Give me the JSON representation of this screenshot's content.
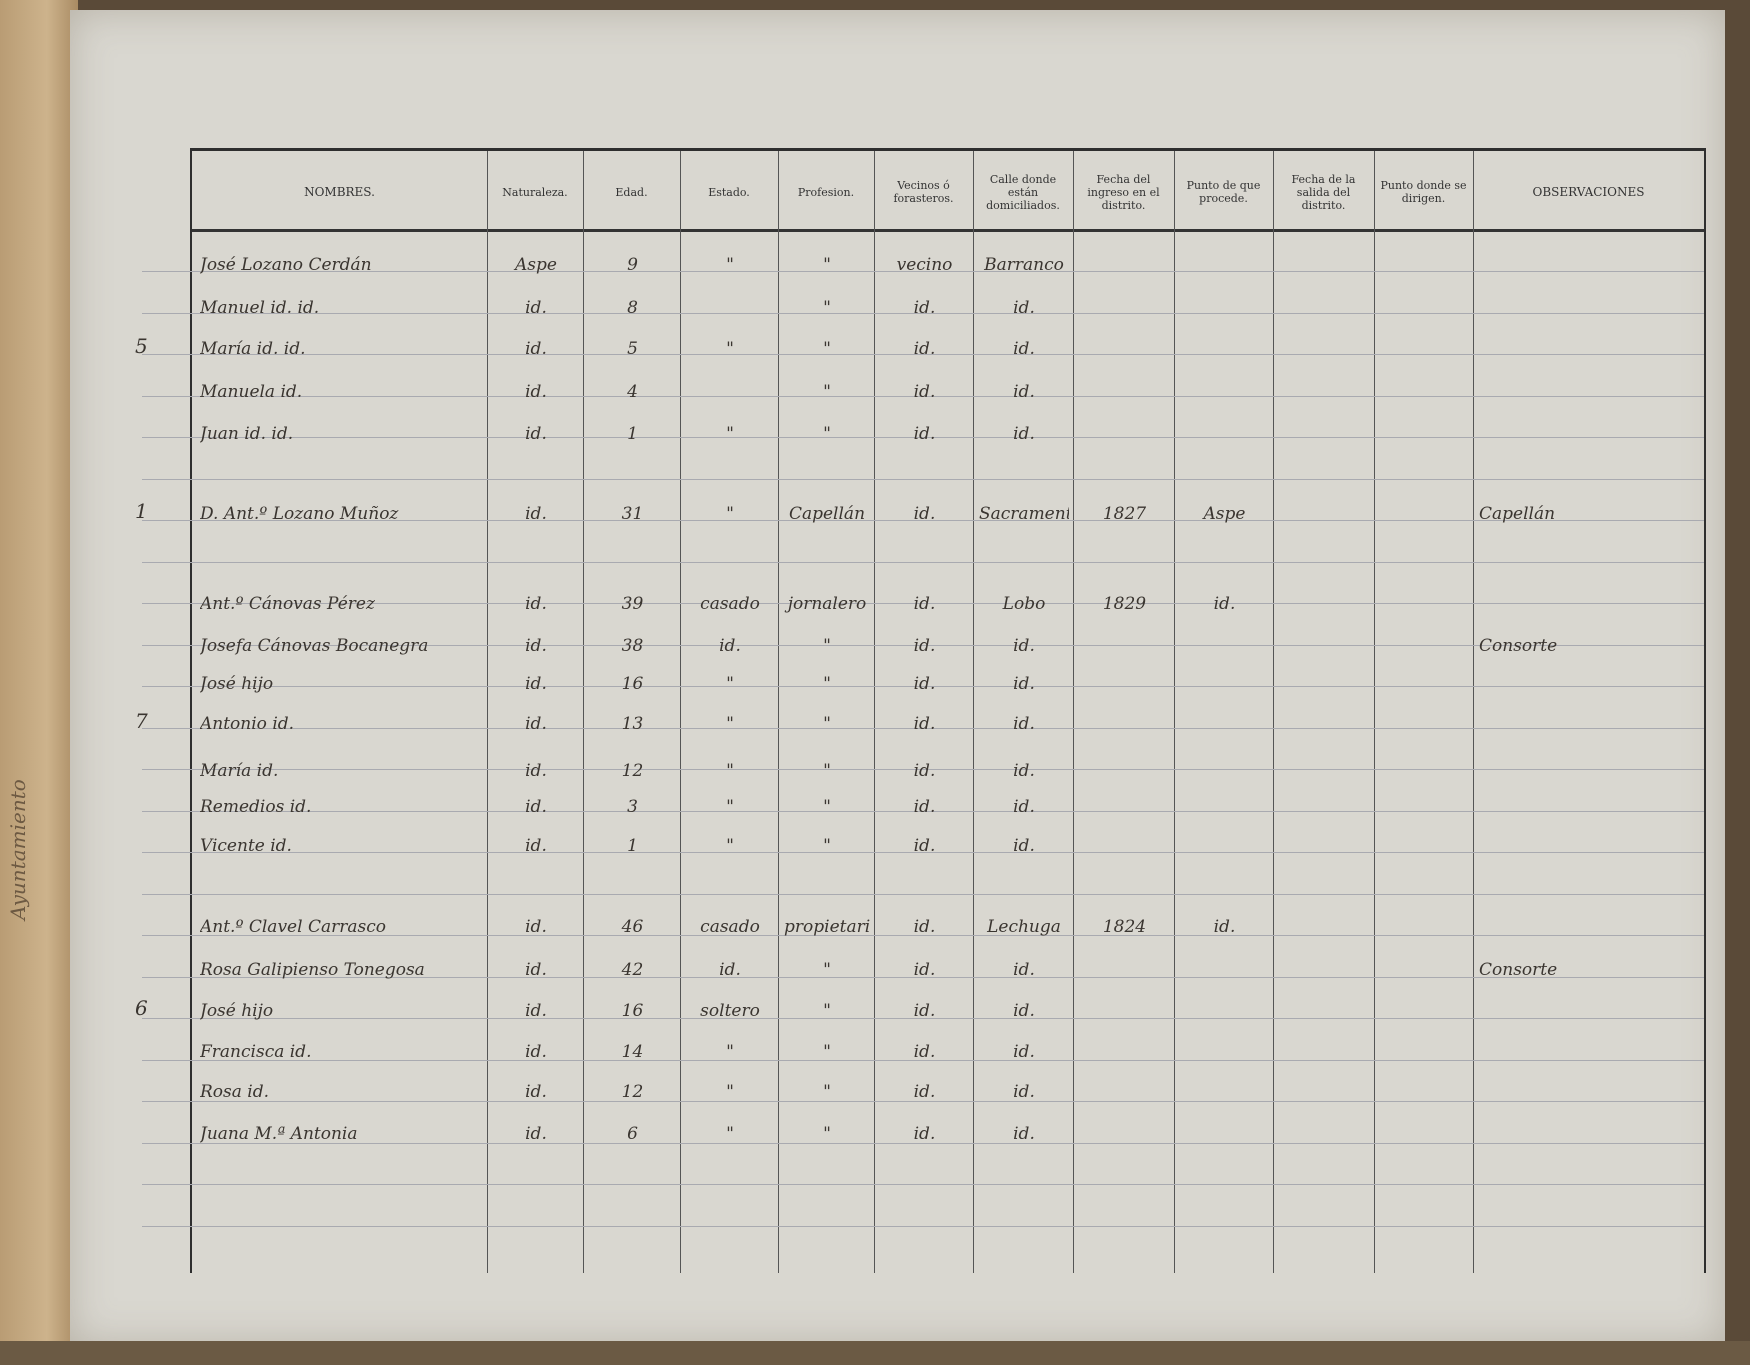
{
  "document": {
    "binding_note": "Ayuntamiento",
    "headers": [
      "NOMBRES.",
      "Naturaleza.",
      "Edad.",
      "Estado.",
      "Profesion.",
      "Vecinos ó forasteros.",
      "Calle donde están domiciliados.",
      "Fecha del ingreso en el distrito.",
      "Punto de que procede.",
      "Fecha de la salida del distrito.",
      "Punto donde se dirigen.",
      "OBSERVACIONES"
    ],
    "rows": [
      {
        "margin": "",
        "nombre": "José Lozano Cerdán",
        "naturaleza": "Aspe",
        "edad": "9",
        "estado": "\"",
        "profesion": "\"",
        "vecinos": "vecino",
        "calle": "Barranco",
        "ingreso": "",
        "procede": "",
        "salida": "",
        "dirige": "",
        "obs": ""
      },
      {
        "margin": "",
        "nombre": "Manuel id. id.",
        "naturaleza": "id.",
        "edad": "8",
        "estado": "",
        "profesion": "\"",
        "vecinos": "id.",
        "calle": "id.",
        "ingreso": "",
        "procede": "",
        "salida": "",
        "dirige": "",
        "obs": ""
      },
      {
        "margin": "5",
        "nombre": "María id. id.",
        "naturaleza": "id.",
        "edad": "5",
        "estado": "\"",
        "profesion": "\"",
        "vecinos": "id.",
        "calle": "id.",
        "ingreso": "",
        "procede": "",
        "salida": "",
        "dirige": "",
        "obs": ""
      },
      {
        "margin": "",
        "nombre": "Manuela id.",
        "naturaleza": "id.",
        "edad": "4",
        "estado": "",
        "profesion": "\"",
        "vecinos": "id.",
        "calle": "id.",
        "ingreso": "",
        "procede": "",
        "salida": "",
        "dirige": "",
        "obs": ""
      },
      {
        "margin": "",
        "nombre": "Juan id. id.",
        "naturaleza": "id.",
        "edad": "1",
        "estado": "\"",
        "profesion": "\"",
        "vecinos": "id.",
        "calle": "id.",
        "ingreso": "",
        "procede": "",
        "salida": "",
        "dirige": "",
        "obs": ""
      },
      {
        "margin": "1",
        "nombre": "D. Ant.º Lozano Muñoz",
        "naturaleza": "id.",
        "edad": "31",
        "estado": "\"",
        "profesion": "Capellán",
        "vecinos": "id.",
        "calle": "Sacramento",
        "ingreso": "1827",
        "procede": "Aspe",
        "salida": "",
        "dirige": "",
        "obs": "Capellán"
      },
      {
        "margin": "",
        "nombre": "Ant.º Cánovas Pérez",
        "naturaleza": "id.",
        "edad": "39",
        "estado": "casado",
        "profesion": "jornalero",
        "vecinos": "id.",
        "calle": "Lobo",
        "ingreso": "1829",
        "procede": "id.",
        "salida": "",
        "dirige": "",
        "obs": ""
      },
      {
        "margin": "",
        "nombre": "Josefa Cánovas Bocanegra",
        "naturaleza": "id.",
        "edad": "38",
        "estado": "id.",
        "profesion": "\"",
        "vecinos": "id.",
        "calle": "id.",
        "ingreso": "",
        "procede": "",
        "salida": "",
        "dirige": "",
        "obs": "Consorte"
      },
      {
        "margin": "",
        "nombre": "José hijo",
        "naturaleza": "id.",
        "edad": "16",
        "estado": "\"",
        "profesion": "\"",
        "vecinos": "id.",
        "calle": "id.",
        "ingreso": "",
        "procede": "",
        "salida": "",
        "dirige": "",
        "obs": ""
      },
      {
        "margin": "7",
        "nombre": "Antonio id.",
        "naturaleza": "id.",
        "edad": "13",
        "estado": "\"",
        "profesion": "\"",
        "vecinos": "id.",
        "calle": "id.",
        "ingreso": "",
        "procede": "",
        "salida": "",
        "dirige": "",
        "obs": ""
      },
      {
        "margin": "",
        "nombre": "María id.",
        "naturaleza": "id.",
        "edad": "12",
        "estado": "\"",
        "profesion": "\"",
        "vecinos": "id.",
        "calle": "id.",
        "ingreso": "",
        "procede": "",
        "salida": "",
        "dirige": "",
        "obs": ""
      },
      {
        "margin": "",
        "nombre": "Remedios id.",
        "naturaleza": "id.",
        "edad": "3",
        "estado": "\"",
        "profesion": "\"",
        "vecinos": "id.",
        "calle": "id.",
        "ingreso": "",
        "procede": "",
        "salida": "",
        "dirige": "",
        "obs": ""
      },
      {
        "margin": "",
        "nombre": "Vicente id.",
        "naturaleza": "id.",
        "edad": "1",
        "estado": "\"",
        "profesion": "\"",
        "vecinos": "id.",
        "calle": "id.",
        "ingreso": "",
        "procede": "",
        "salida": "",
        "dirige": "",
        "obs": ""
      },
      {
        "margin": "",
        "nombre": "Ant.º Clavel Carrasco",
        "naturaleza": "id.",
        "edad": "46",
        "estado": "casado",
        "profesion": "propietario",
        "vecinos": "id.",
        "calle": "Lechuga",
        "ingreso": "1824",
        "procede": "id.",
        "salida": "",
        "dirige": "",
        "obs": ""
      },
      {
        "margin": "",
        "nombre": "Rosa Galipienso Tonegosa",
        "naturaleza": "id.",
        "edad": "42",
        "estado": "id.",
        "profesion": "\"",
        "vecinos": "id.",
        "calle": "id.",
        "ingreso": "",
        "procede": "",
        "salida": "",
        "dirige": "",
        "obs": "Consorte"
      },
      {
        "margin": "6",
        "nombre": "José hijo",
        "naturaleza": "id.",
        "edad": "16",
        "estado": "soltero",
        "profesion": "\"",
        "vecinos": "id.",
        "calle": "id.",
        "ingreso": "",
        "procede": "",
        "salida": "",
        "dirige": "",
        "obs": ""
      },
      {
        "margin": "",
        "nombre": "Francisca id.",
        "naturaleza": "id.",
        "edad": "14",
        "estado": "\"",
        "profesion": "\"",
        "vecinos": "id.",
        "calle": "id.",
        "ingreso": "",
        "procede": "",
        "salida": "",
        "dirige": "",
        "obs": ""
      },
      {
        "margin": "",
        "nombre": "Rosa id.",
        "naturaleza": "id.",
        "edad": "12",
        "estado": "\"",
        "profesion": "\"",
        "vecinos": "id.",
        "calle": "id.",
        "ingreso": "",
        "procede": "",
        "salida": "",
        "dirige": "",
        "obs": ""
      },
      {
        "margin": "",
        "nombre": "Juana M.ª Antonia",
        "naturaleza": "id.",
        "edad": "6",
        "estado": "\"",
        "profesion": "\"",
        "vecinos": "id.",
        "calle": "id.",
        "ingreso": "",
        "procede": "",
        "salida": "",
        "dirige": "",
        "obs": ""
      }
    ]
  }
}
